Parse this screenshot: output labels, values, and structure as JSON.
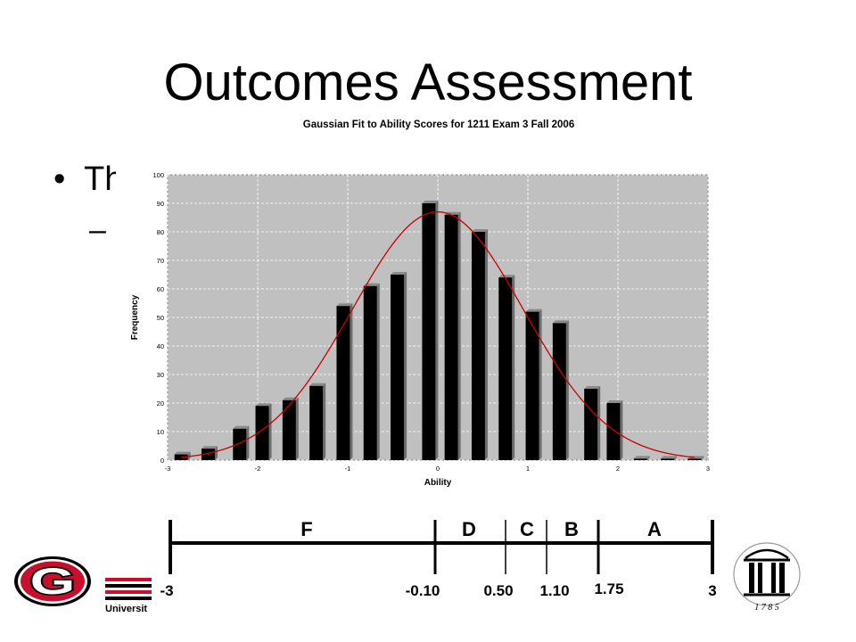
{
  "slide": {
    "title": "Outcomes Assessment",
    "bullet_text": "Th",
    "sub_bullet_text": "–"
  },
  "colors": {
    "plot_bg": "#c0c0c0",
    "bar_fill": "#000000",
    "curve": "#cc0000",
    "grid": "#ffffff"
  },
  "chart_data": {
    "type": "bar",
    "title": "Gaussian Fit to Ability Scores for 1211 Exam 3 Fall 2006",
    "xlabel": "Ability",
    "ylabel": "Frequency",
    "xlim": [
      -3,
      3
    ],
    "ylim": [
      0,
      100
    ],
    "x_ticks": [
      "-3",
      "-2",
      "-1",
      "0",
      "1",
      "2",
      "3"
    ],
    "y_ticks": [
      "0",
      "10",
      "20",
      "30",
      "40",
      "50",
      "60",
      "70",
      "80",
      "90",
      "100"
    ],
    "grid": true,
    "series": [
      {
        "type": "bar",
        "x": [
          -2.85,
          -2.55,
          -2.2,
          -1.95,
          -1.65,
          -1.35,
          -1.05,
          -0.75,
          -0.45,
          -0.1,
          0.15,
          0.45,
          0.75,
          1.05,
          1.35,
          1.7,
          1.95,
          2.25,
          2.55,
          2.85
        ],
        "values": [
          2,
          4,
          11,
          19,
          21,
          26,
          54,
          61,
          65,
          90,
          86,
          80,
          64,
          52,
          48,
          25,
          20,
          0.5,
          0.5,
          0.5
        ]
      },
      {
        "type": "line",
        "curve": "gaussian",
        "peak": 87,
        "mean": 0,
        "sd": 0.95
      }
    ]
  },
  "grade_scale": {
    "letters": [
      "F",
      "D",
      "C",
      "B",
      "A"
    ],
    "cutoffs": [
      "-3",
      "-0.10",
      "0.50",
      "1.10",
      "1.75",
      "3"
    ]
  },
  "footer": {
    "university_text": "Universit",
    "arch_year": "1 7 8 5",
    "logo_letter": "G"
  }
}
